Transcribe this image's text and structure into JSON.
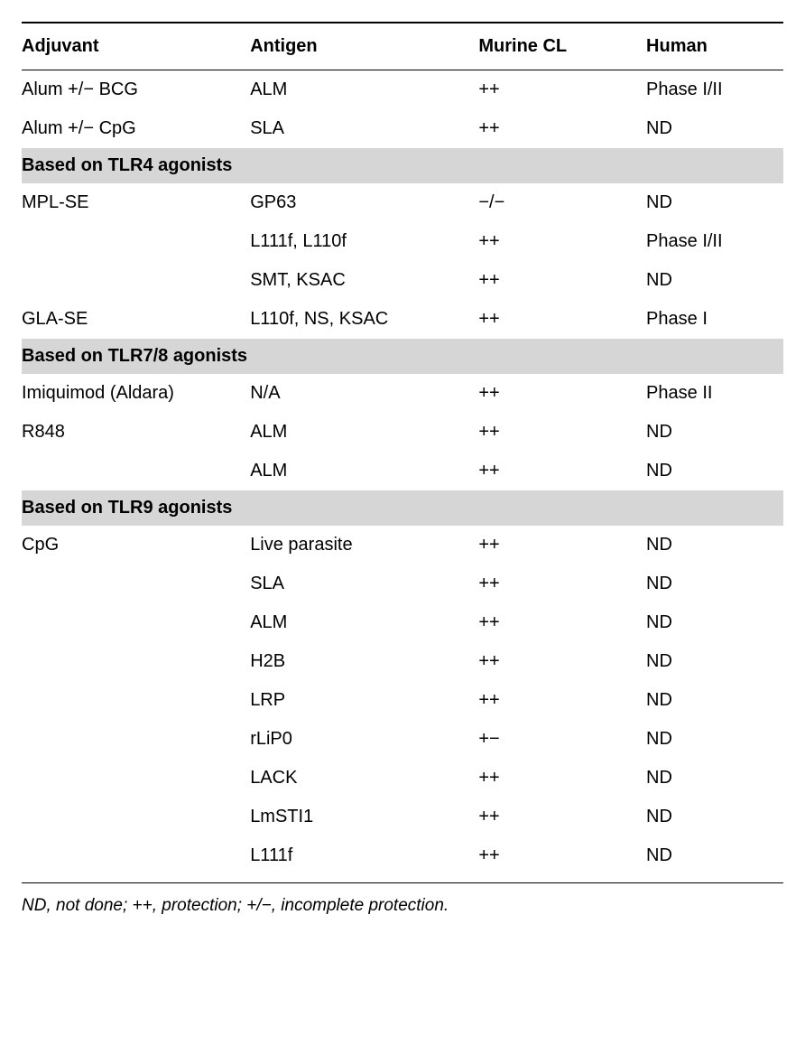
{
  "table": {
    "columns": [
      "Adjuvant",
      "Antigen",
      "Murine CL",
      "Human"
    ],
    "col_widths_pct": [
      30,
      30,
      22,
      18
    ],
    "header_fontsize_pt": 15,
    "body_fontsize_pt": 15,
    "section_bg": "#d6d6d6",
    "border_color": "#000000",
    "rows": [
      {
        "type": "data",
        "cells": [
          "Alum +/− BCG",
          "ALM",
          "++",
          "Phase I/II"
        ]
      },
      {
        "type": "data",
        "cells": [
          "Alum +/− CpG",
          "SLA",
          "++",
          "ND"
        ]
      },
      {
        "type": "section",
        "label": "Based on TLR4 agonists"
      },
      {
        "type": "data",
        "cells": [
          "MPL-SE",
          "GP63",
          "−/−",
          "ND"
        ]
      },
      {
        "type": "data",
        "cells": [
          "",
          "L111f, L110f",
          "++",
          "Phase I/II"
        ]
      },
      {
        "type": "data",
        "cells": [
          "",
          "SMT, KSAC",
          "++",
          "ND"
        ]
      },
      {
        "type": "data",
        "cells": [
          "GLA-SE",
          "L110f, NS, KSAC",
          "++",
          "Phase I"
        ]
      },
      {
        "type": "section",
        "label": "Based on TLR7/8 agonists"
      },
      {
        "type": "data",
        "cells": [
          "Imiquimod (Aldara)",
          "N/A",
          "++",
          "Phase II"
        ]
      },
      {
        "type": "data",
        "cells": [
          "R848",
          "ALM",
          "++",
          "ND"
        ]
      },
      {
        "type": "data",
        "cells": [
          "",
          "ALM",
          "++",
          "ND"
        ]
      },
      {
        "type": "section",
        "label": "Based on TLR9 agonists"
      },
      {
        "type": "data",
        "cells": [
          "CpG",
          "Live parasite",
          "++",
          "ND"
        ]
      },
      {
        "type": "data",
        "cells": [
          "",
          "SLA",
          "++",
          "ND"
        ]
      },
      {
        "type": "data",
        "cells": [
          "",
          "ALM",
          "++",
          "ND"
        ]
      },
      {
        "type": "data",
        "cells": [
          "",
          "H2B",
          "++",
          "ND"
        ]
      },
      {
        "type": "data",
        "cells": [
          "",
          "LRP",
          "++",
          "ND"
        ]
      },
      {
        "type": "data",
        "cells": [
          "",
          "rLiP0",
          "+−",
          "ND"
        ]
      },
      {
        "type": "data",
        "cells": [
          "",
          "LACK",
          "++",
          "ND"
        ]
      },
      {
        "type": "data",
        "cells": [
          "",
          "LmSTI1",
          "++",
          "ND"
        ]
      },
      {
        "type": "data",
        "cells": [
          "",
          "L111f",
          "++",
          "ND"
        ]
      }
    ]
  },
  "footnote": "ND, not done; ++, protection; +/−, incomplete protection."
}
